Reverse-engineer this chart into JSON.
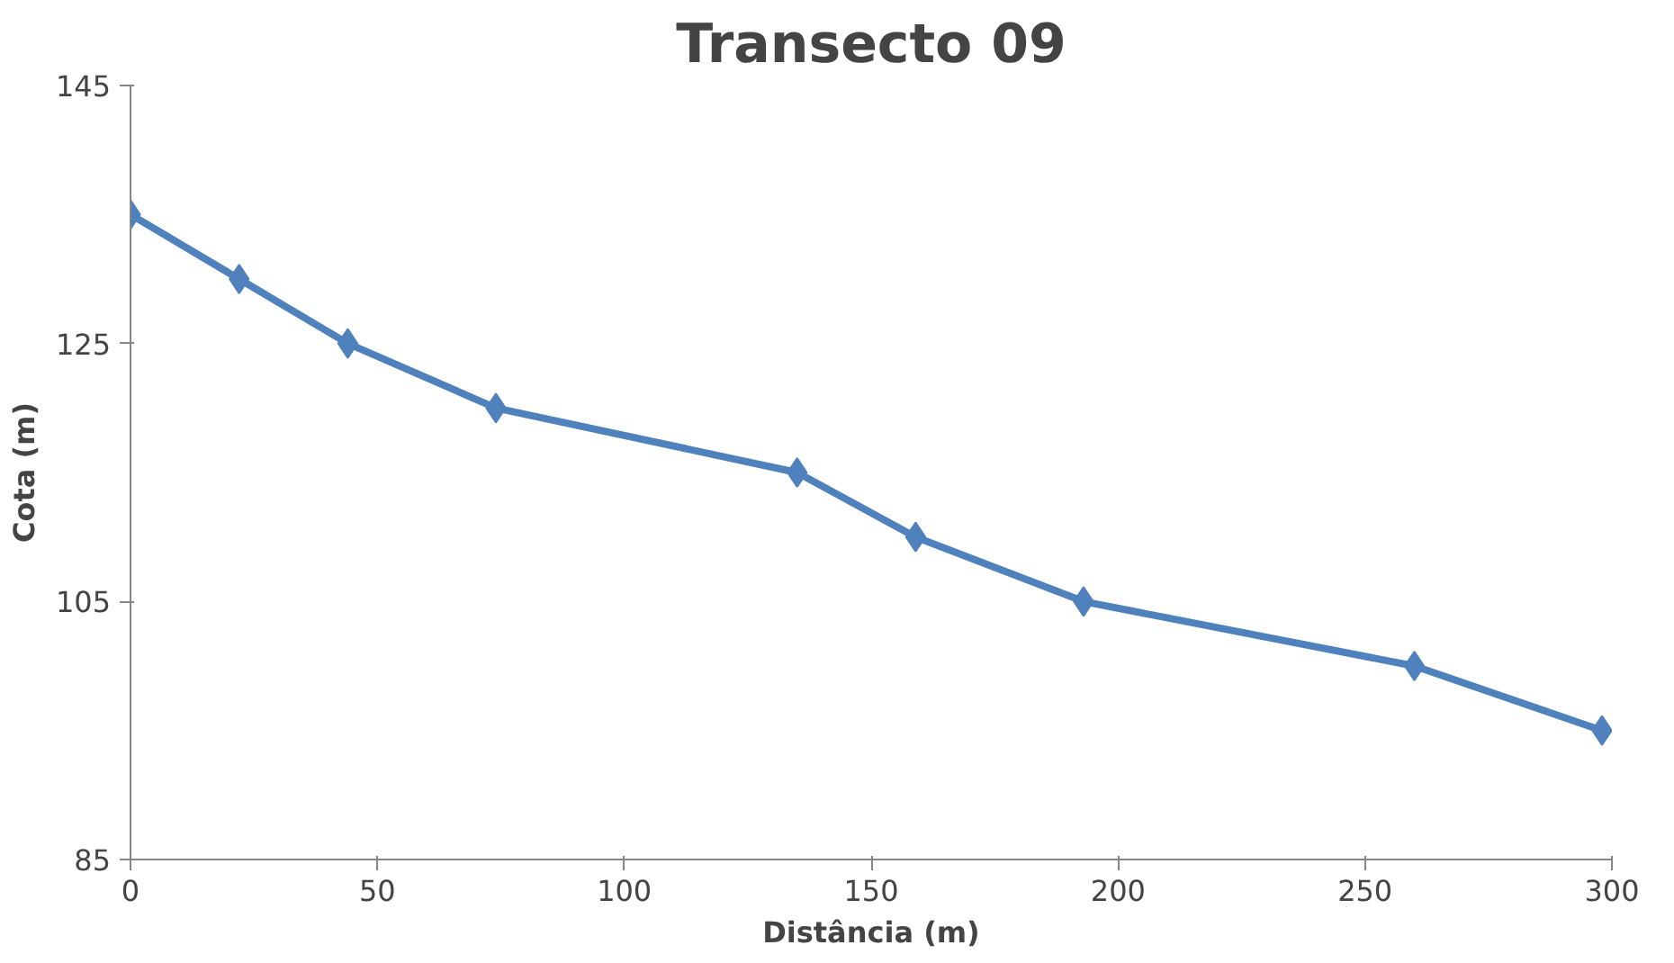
{
  "chart_data": {
    "type": "line",
    "title": "Transecto 09",
    "xlabel": "Distância (m)",
    "ylabel": "Cota (m)",
    "x": [
      0,
      22,
      44,
      74,
      135,
      159,
      193,
      260,
      298
    ],
    "series": [
      {
        "color": "#4f81bd",
        "values": [
          135,
          130,
          125,
          120,
          115,
          110,
          105,
          100,
          95
        ]
      }
    ],
    "xlim": [
      0,
      300
    ],
    "xticks": [
      0,
      50,
      100,
      150,
      200,
      250,
      300
    ],
    "ylim": [
      85,
      145
    ],
    "yticks": [
      85,
      105,
      125,
      145
    ],
    "marker": "diamond",
    "line_style": "solid",
    "grid": false
  }
}
